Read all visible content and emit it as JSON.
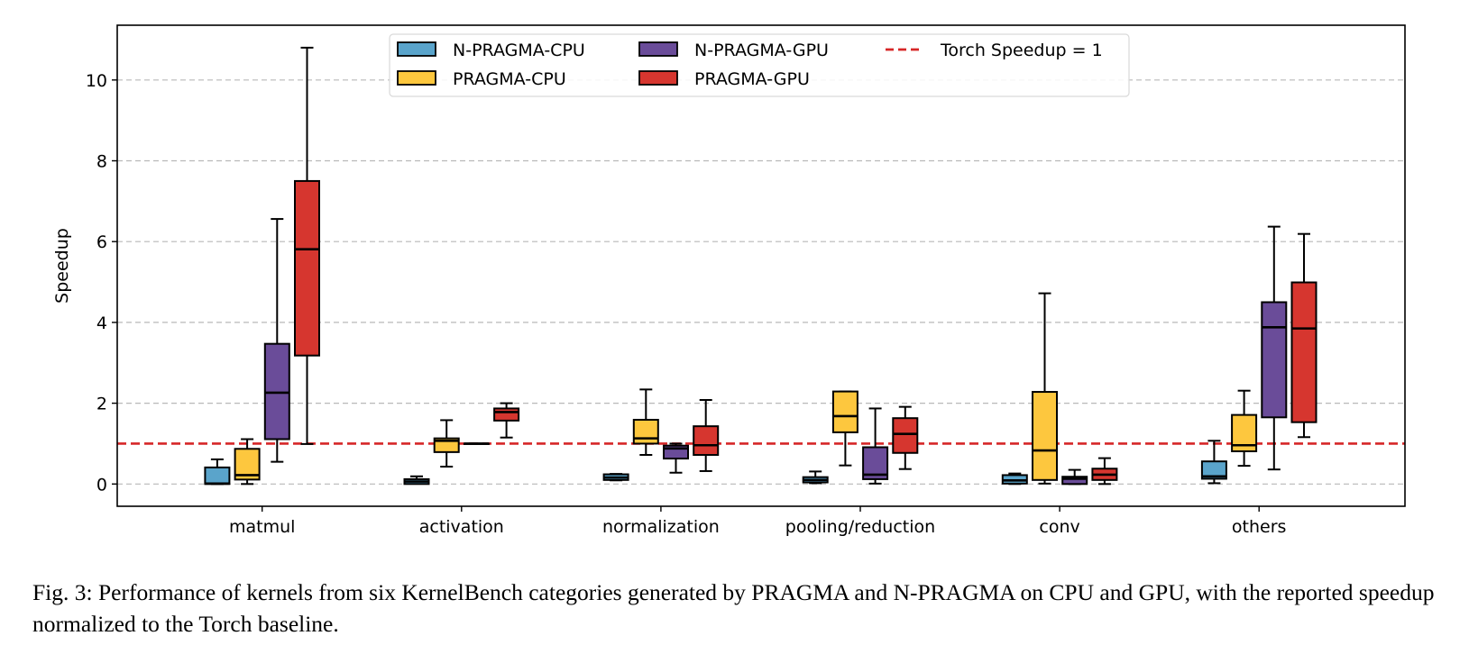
{
  "chart_data": {
    "type": "boxplot",
    "title": "",
    "xlabel": "",
    "ylabel": "Speedup",
    "ylim": [
      -0.55,
      11.3
    ],
    "yticks": [
      0,
      2,
      4,
      6,
      8,
      10
    ],
    "grid": "y-dashed",
    "legend_position": "top-center",
    "categories": [
      "matmul",
      "activation",
      "normalization",
      "pooling/reduction",
      "conv",
      "others"
    ],
    "reference_line": {
      "label": "Torch Speedup = 1",
      "value": 1,
      "color": "#d62728",
      "style": "dashed"
    },
    "series": [
      {
        "name": "N-PRAGMA-CPU",
        "color": "#5aa4cb",
        "boxes": [
          {
            "whislo": 0.0,
            "q1": 0.0,
            "med": 0.01,
            "q3": 0.41,
            "whishi": 0.61
          },
          {
            "whislo": 0.01,
            "q1": 0.0,
            "med": 0.06,
            "q3": 0.12,
            "whishi": 0.19
          },
          {
            "whislo": 0.09,
            "q1": 0.1,
            "med": 0.16,
            "q3": 0.24,
            "whishi": 0.25
          },
          {
            "whislo": 0.02,
            "q1": 0.04,
            "med": 0.1,
            "q3": 0.17,
            "whishi": 0.31
          },
          {
            "whislo": 0.0,
            "q1": 0.01,
            "med": 0.09,
            "q3": 0.22,
            "whishi": 0.26
          },
          {
            "whislo": 0.02,
            "q1": 0.13,
            "med": 0.19,
            "q3": 0.56,
            "whishi": 1.07
          }
        ]
      },
      {
        "name": "PRAGMA-CPU",
        "color": "#fdc73e",
        "boxes": [
          {
            "whislo": 0.0,
            "q1": 0.11,
            "med": 0.22,
            "q3": 0.87,
            "whishi": 1.11
          },
          {
            "whislo": 0.43,
            "q1": 0.79,
            "med": 1.07,
            "q3": 1.13,
            "whishi": 1.58
          },
          {
            "whislo": 0.72,
            "q1": 1.0,
            "med": 1.13,
            "q3": 1.59,
            "whishi": 2.34
          },
          {
            "whislo": 0.46,
            "q1": 1.28,
            "med": 1.68,
            "q3": 2.29,
            "whishi": 2.29
          },
          {
            "whislo": 0.01,
            "q1": 0.1,
            "med": 0.83,
            "q3": 2.28,
            "whishi": 4.72
          },
          {
            "whislo": 0.45,
            "q1": 0.81,
            "med": 0.96,
            "q3": 1.71,
            "whishi": 2.31
          }
        ]
      },
      {
        "name": "N-PRAGMA-GPU",
        "color": "#6a4c99",
        "boxes": [
          {
            "whislo": 0.55,
            "q1": 1.11,
            "med": 2.26,
            "q3": 3.47,
            "whishi": 6.56
          },
          {
            "whislo": 1.0,
            "q1": 1.0,
            "med": 1.0,
            "q3": 1.0,
            "whishi": 1.0
          },
          {
            "whislo": 0.28,
            "q1": 0.63,
            "med": 0.88,
            "q3": 0.95,
            "whishi": 1.0
          },
          {
            "whislo": 0.01,
            "q1": 0.12,
            "med": 0.23,
            "q3": 0.91,
            "whishi": 1.87
          },
          {
            "whislo": 0.0,
            "q1": 0.0,
            "med": 0.13,
            "q3": 0.18,
            "whishi": 0.35
          },
          {
            "whislo": 0.36,
            "q1": 1.65,
            "med": 3.88,
            "q3": 4.5,
            "whishi": 6.37
          }
        ]
      },
      {
        "name": "PRAGMA-GPU",
        "color": "#d6362f",
        "boxes": [
          {
            "whislo": 0.99,
            "q1": 3.18,
            "med": 5.81,
            "q3": 7.5,
            "whishi": 10.8
          },
          {
            "whislo": 1.15,
            "q1": 1.57,
            "med": 1.78,
            "q3": 1.87,
            "whishi": 2.0
          },
          {
            "whislo": 0.32,
            "q1": 0.72,
            "med": 0.96,
            "q3": 1.43,
            "whishi": 2.08
          },
          {
            "whislo": 0.37,
            "q1": 0.77,
            "med": 1.24,
            "q3": 1.63,
            "whishi": 1.91
          },
          {
            "whislo": 0.0,
            "q1": 0.1,
            "med": 0.23,
            "q3": 0.38,
            "whishi": 0.64
          },
          {
            "whislo": 1.16,
            "q1": 1.53,
            "med": 3.85,
            "q3": 4.99,
            "whishi": 6.19
          }
        ]
      }
    ]
  },
  "legend": {
    "items": [
      {
        "label": "N-PRAGMA-CPU",
        "kind": "patch",
        "color": "#5aa4cb"
      },
      {
        "label": "PRAGMA-CPU",
        "kind": "patch",
        "color": "#fdc73e"
      },
      {
        "label": "N-PRAGMA-GPU",
        "kind": "patch",
        "color": "#6a4c99"
      },
      {
        "label": "PRAGMA-GPU",
        "kind": "patch",
        "color": "#d6362f"
      },
      {
        "label": "Torch Speedup = 1",
        "kind": "line",
        "color": "#d62728"
      }
    ]
  },
  "caption": "Fig. 3: Performance of kernels from six KernelBench categories generated by PRAGMA and N-PRAGMA on CPU and GPU, with the reported speedup normalized to the Torch baseline."
}
